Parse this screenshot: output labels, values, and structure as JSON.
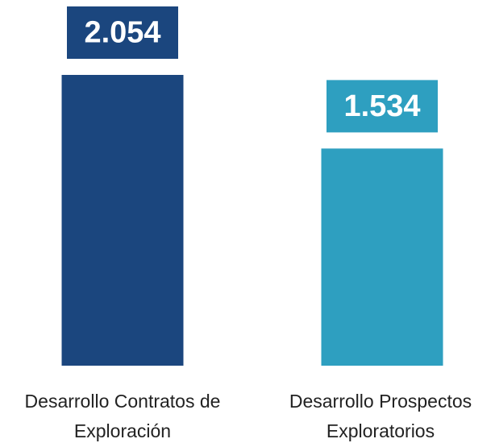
{
  "chart_data": {
    "type": "bar",
    "categories": [
      "Desarrollo Contratos de Exploración",
      "Desarrollo Prospectos Exploratorios"
    ],
    "values": [
      2054,
      1534
    ],
    "value_labels": [
      "2.054",
      "1.534"
    ],
    "colors": [
      "#1b467e",
      "#2e9fc0"
    ]
  }
}
